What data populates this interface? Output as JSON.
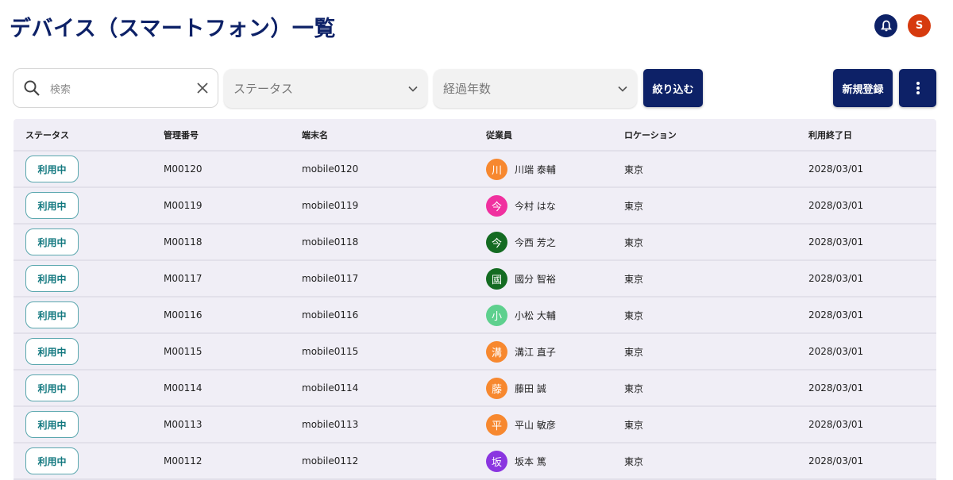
{
  "header": {
    "title": "デバイス（スマートフォン）一覧",
    "avatar_initial": "S",
    "colors": {
      "primary": "#0d2167",
      "avatar": "#d63a0e"
    }
  },
  "toolbar": {
    "search_placeholder": "検索",
    "status_select": "ステータス",
    "years_select": "経過年数",
    "filter_button": "絞り込む",
    "new_button": "新規登録"
  },
  "table": {
    "columns": [
      "ステータス",
      "管理番号",
      "端末名",
      "従業員",
      "ロケーション",
      "利用終了日"
    ],
    "rows": [
      {
        "status": "利用中",
        "id": "M00120",
        "device": "mobile0120",
        "initial": "川",
        "color": "#f7882f",
        "employee": "川端 泰輔",
        "location": "東京",
        "end_date": "2028/03/01"
      },
      {
        "status": "利用中",
        "id": "M00119",
        "device": "mobile0119",
        "initial": "今",
        "color": "#f0309f",
        "employee": "今村 はな",
        "location": "東京",
        "end_date": "2028/03/01"
      },
      {
        "status": "利用中",
        "id": "M00118",
        "device": "mobile0118",
        "initial": "今",
        "color": "#146b22",
        "employee": "今西 芳之",
        "location": "東京",
        "end_date": "2028/03/01"
      },
      {
        "status": "利用中",
        "id": "M00117",
        "device": "mobile0117",
        "initial": "國",
        "color": "#146b22",
        "employee": "國分 智裕",
        "location": "東京",
        "end_date": "2028/03/01"
      },
      {
        "status": "利用中",
        "id": "M00116",
        "device": "mobile0116",
        "initial": "小",
        "color": "#5ed08e",
        "employee": "小松 大輔",
        "location": "東京",
        "end_date": "2028/03/01"
      },
      {
        "status": "利用中",
        "id": "M00115",
        "device": "mobile0115",
        "initial": "溝",
        "color": "#f7882f",
        "employee": "溝江 直子",
        "location": "東京",
        "end_date": "2028/03/01"
      },
      {
        "status": "利用中",
        "id": "M00114",
        "device": "mobile0114",
        "initial": "藤",
        "color": "#f7882f",
        "employee": "藤田 誠",
        "location": "東京",
        "end_date": "2028/03/01"
      },
      {
        "status": "利用中",
        "id": "M00113",
        "device": "mobile0113",
        "initial": "平",
        "color": "#f7882f",
        "employee": "平山 敏彦",
        "location": "東京",
        "end_date": "2028/03/01"
      },
      {
        "status": "利用中",
        "id": "M00112",
        "device": "mobile0112",
        "initial": "坂",
        "color": "#8a35e0",
        "employee": "坂本 篤",
        "location": "東京",
        "end_date": "2028/03/01"
      }
    ]
  }
}
